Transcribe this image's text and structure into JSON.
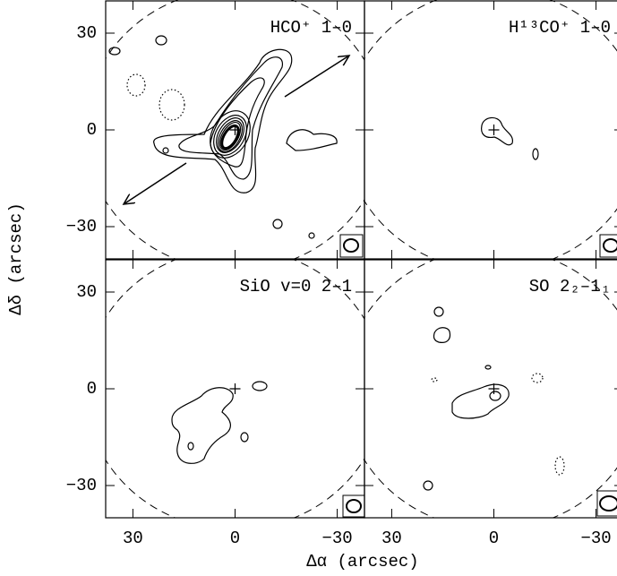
{
  "chart_data": [
    {
      "type": "contour",
      "title": "HCO⁺ 1–0",
      "xlim": [
        38,
        -38
      ],
      "ylim": [
        -40,
        40
      ],
      "xticks": [
        30,
        0,
        -30
      ],
      "yticks": [
        30,
        0,
        {
          "value": -30,
          "label": "−30"
        }
      ]
    },
    {
      "type": "contour",
      "title": "H¹³CO⁺ 1–0",
      "xlim": [
        38,
        -38
      ],
      "ylim": [
        -40,
        40
      ],
      "xticks": [
        30,
        0,
        -30
      ],
      "yticks": [
        30,
        0,
        -30
      ]
    },
    {
      "type": "contour",
      "title": "SiO v=0 2–1",
      "xlim": [
        38,
        -38
      ],
      "ylim": [
        -40,
        40
      ],
      "xticks": [
        30,
        0,
        {
          "value": -30,
          "label": "−30"
        }
      ],
      "yticks": [
        30,
        0,
        {
          "value": -30,
          "label": "−30"
        }
      ]
    },
    {
      "type": "contour",
      "title": "SO 2₂–1₁",
      "xlim": [
        38,
        -38
      ],
      "ylim": [
        -40,
        40
      ],
      "xticks": [
        30,
        0,
        {
          "value": -30,
          "label": "−30"
        }
      ],
      "yticks": [
        30,
        0,
        -30
      ]
    }
  ],
  "xlabel": "Δα (arcsec)",
  "ylabel": "Δδ (arcsec)"
}
